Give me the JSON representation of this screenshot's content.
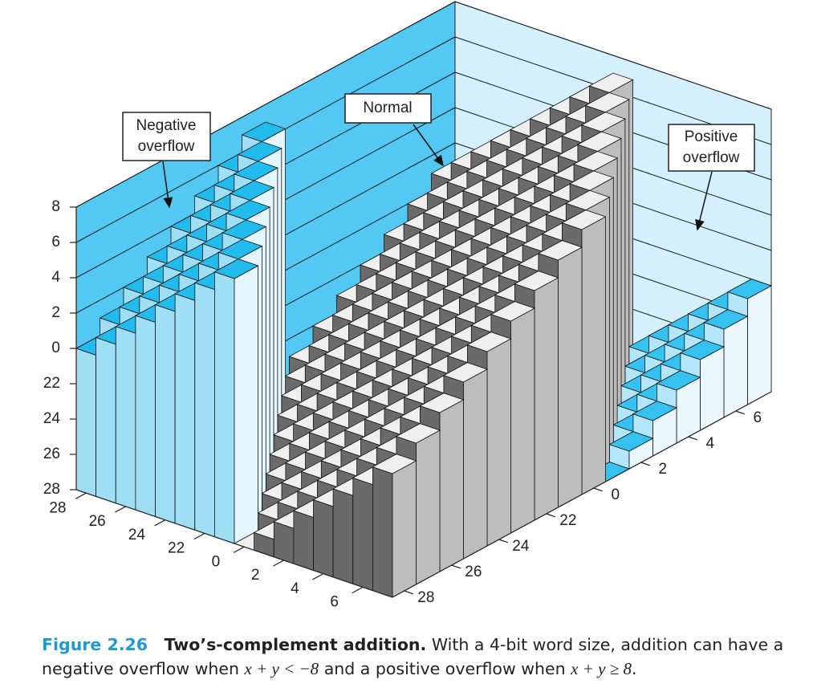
{
  "chart_data": {
    "type": "bar3d",
    "x": [
      -8,
      -7,
      -6,
      -5,
      -4,
      -3,
      -2,
      -1,
      0,
      1,
      2,
      3,
      4,
      5,
      6,
      7
    ],
    "y": [
      -8,
      -7,
      -6,
      -5,
      -4,
      -3,
      -2,
      -1,
      0,
      1,
      2,
      3,
      4,
      5,
      6,
      7
    ],
    "z": [
      [
        0,
        1,
        2,
        3,
        4,
        5,
        6,
        7,
        -8,
        -7,
        -6,
        -5,
        -4,
        -3,
        -2,
        -1
      ],
      [
        1,
        2,
        3,
        4,
        5,
        6,
        7,
        -8,
        -7,
        -6,
        -5,
        -4,
        -3,
        -2,
        -1,
        0
      ],
      [
        2,
        3,
        4,
        5,
        6,
        7,
        -8,
        -7,
        -6,
        -5,
        -4,
        -3,
        -2,
        -1,
        0,
        1
      ],
      [
        3,
        4,
        5,
        6,
        7,
        -8,
        -7,
        -6,
        -5,
        -4,
        -3,
        -2,
        -1,
        0,
        1,
        2
      ],
      [
        4,
        5,
        6,
        7,
        -8,
        -7,
        -6,
        -5,
        -4,
        -3,
        -2,
        -1,
        0,
        1,
        2,
        3
      ],
      [
        5,
        6,
        7,
        -8,
        -7,
        -6,
        -5,
        -4,
        -3,
        -2,
        -1,
        0,
        1,
        2,
        3,
        4
      ],
      [
        6,
        7,
        -8,
        -7,
        -6,
        -5,
        -4,
        -3,
        -2,
        -1,
        0,
        1,
        2,
        3,
        4,
        5
      ],
      [
        7,
        -8,
        -7,
        -6,
        -5,
        -4,
        -3,
        -2,
        -1,
        0,
        1,
        2,
        3,
        4,
        5,
        6
      ],
      [
        -8,
        -7,
        -6,
        -5,
        -4,
        -3,
        -2,
        -1,
        0,
        1,
        2,
        3,
        4,
        5,
        6,
        7
      ],
      [
        -7,
        -6,
        -5,
        -4,
        -3,
        -2,
        -1,
        0,
        1,
        2,
        3,
        4,
        5,
        6,
        7,
        -8
      ],
      [
        -6,
        -5,
        -4,
        -3,
        -2,
        -1,
        0,
        1,
        2,
        3,
        4,
        5,
        6,
        7,
        -8,
        -7
      ],
      [
        -5,
        -4,
        -3,
        -2,
        -1,
        0,
        1,
        2,
        3,
        4,
        5,
        6,
        7,
        -8,
        -7,
        -6
      ],
      [
        -4,
        -3,
        -2,
        -1,
        0,
        1,
        2,
        3,
        4,
        5,
        6,
        7,
        -8,
        -7,
        -6,
        -5
      ],
      [
        -3,
        -2,
        -1,
        0,
        1,
        2,
        3,
        4,
        5,
        6,
        7,
        -8,
        -7,
        -6,
        -5,
        -4
      ],
      [
        -2,
        -1,
        0,
        1,
        2,
        3,
        4,
        5,
        6,
        7,
        -8,
        -7,
        -6,
        -5,
        -4,
        -3
      ],
      [
        -1,
        0,
        1,
        2,
        3,
        4,
        5,
        6,
        7,
        -8,
        -7,
        -6,
        -5,
        -4,
        -3,
        -2
      ]
    ],
    "xlim": [
      -8,
      8
    ],
    "ylim": [
      -8,
      8
    ],
    "zlim": [
      -8,
      8
    ],
    "xticks": [
      {
        "value": -8,
        "label": "28"
      },
      {
        "value": -6,
        "label": "26"
      },
      {
        "value": -4,
        "label": "24"
      },
      {
        "value": -2,
        "label": "22"
      },
      0,
      2,
      4,
      6
    ],
    "yticks": [
      {
        "value": -8,
        "label": "28"
      },
      {
        "value": -6,
        "label": "26"
      },
      {
        "value": -4,
        "label": "24"
      },
      {
        "value": -2,
        "label": "22"
      },
      0,
      2,
      4,
      6
    ],
    "zticks": [
      {
        "value": -8,
        "label": "28"
      },
      {
        "value": -6,
        "label": "26"
      },
      {
        "value": -4,
        "label": "24"
      },
      {
        "value": -2,
        "label": "22"
      },
      0,
      2,
      4,
      6,
      8
    ],
    "grid": true,
    "colors": {
      "negative_overflow": {
        "top": "#22bbee",
        "x_face": "#e4f6fd",
        "y_face": "#9fdff6"
      },
      "normal": {
        "top": "#efefef",
        "x_face": "#bdbdbd",
        "y_face": "#6a6a6a"
      },
      "positive_overflow": {
        "top": "#35c2f0",
        "x_face": "#eaf8fe",
        "y_face": "#b2e6f8"
      },
      "left_wall": "#52c8f2",
      "right_wall": "#d3f0fc"
    },
    "annotations": [
      {
        "lines": [
          "Negative",
          "overflow"
        ]
      },
      {
        "lines": [
          "Normal"
        ]
      },
      {
        "lines": [
          "Positive",
          "overflow"
        ]
      }
    ]
  },
  "caption": {
    "label": "Figure 2.26",
    "title": "Two’s-complement addition.",
    "text1": "With a 4-bit word size, addition can have a negative overflow when",
    "math1": "x + y < −8",
    "text2": "and a positive overflow when",
    "math2": "x + y ≥ 8",
    "text3": "."
  }
}
